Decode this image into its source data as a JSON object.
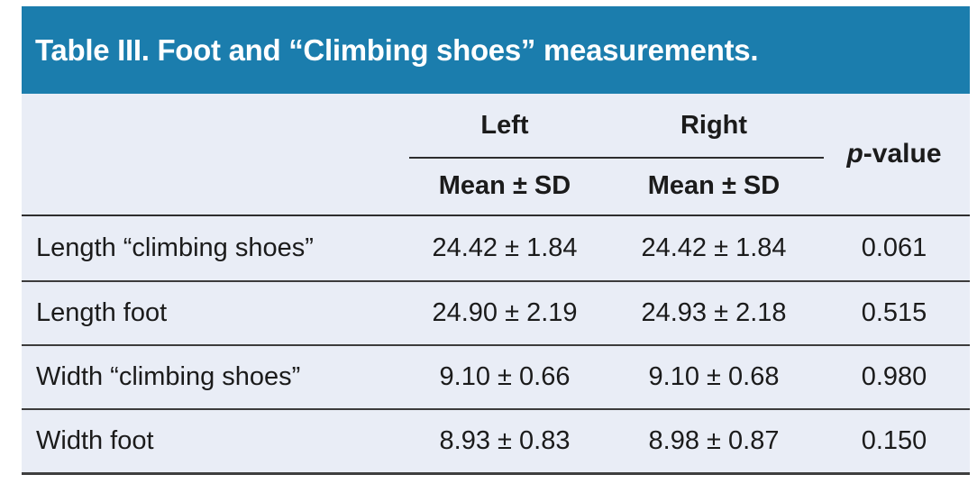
{
  "title": "Table III. Foot and “Climbing shoes” measurements.",
  "columns": {
    "group_left": "Left",
    "group_right": "Right",
    "pvalue_italic": "p",
    "pvalue_rest": "-value",
    "sub_left": "Mean ± SD",
    "sub_right": "Mean ± SD"
  },
  "rows": [
    {
      "label": "Length “climbing shoes”",
      "left": "24.42 ± 1.84",
      "right": "24.42 ± 1.84",
      "p": "0.061"
    },
    {
      "label": "Length foot",
      "left": "24.90 ± 2.19",
      "right": "24.93 ± 2.18",
      "p": "0.515"
    },
    {
      "label": "Width “climbing shoes”",
      "left": "9.10 ± 0.66",
      "right": "9.10 ± 0.68",
      "p": "0.980"
    },
    {
      "label": "Width foot",
      "left": "8.93 ± 0.83",
      "right": "8.98 ± 0.87",
      "p": "0.150"
    }
  ],
  "colors": {
    "title_bar_bg": "#1b7dad",
    "title_text": "#ffffff",
    "body_bg": "#e9edf6",
    "text": "#1b1b1b",
    "border_dark": "#2e2e2e",
    "row_divider": "#3c3c3c"
  }
}
